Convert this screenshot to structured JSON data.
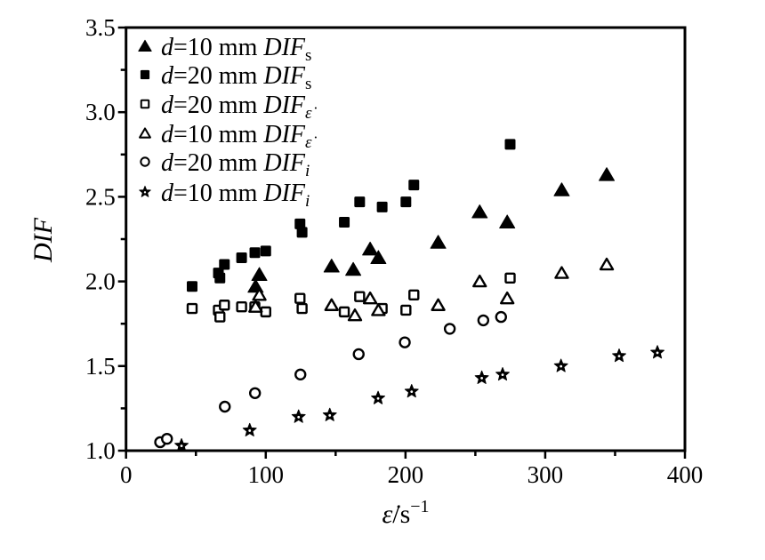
{
  "chart_data": {
    "type": "scatter",
    "title": "",
    "xlabel": "ε̇/s−1",
    "xlabel_parts": {
      "symbol": "ε̇",
      "unit": "/s",
      "exp": "−1"
    },
    "ylabel": "DIF",
    "xlim": [
      0,
      400
    ],
    "ylim": [
      1.0,
      3.5
    ],
    "x_ticks": [
      0,
      100,
      200,
      300,
      400
    ],
    "x_tick_labels": [
      "0",
      "100",
      "200",
      "300",
      "400"
    ],
    "y_ticks": [
      1.0,
      1.5,
      2.0,
      2.5,
      3.0,
      3.5
    ],
    "y_tick_labels": [
      "1.0",
      "1.5",
      "2.0",
      "2.5",
      "3.0",
      "3.5"
    ],
    "grid": false,
    "legend_position": "top-left",
    "series": [
      {
        "name": "d=10 mm DIFs",
        "label": {
          "d": "d",
          "eq": "=10 mm ",
          "dif": "DIF",
          "sub": "s"
        },
        "marker": "triangle-filled",
        "x": [
          92.7,
          95.4,
          147.1,
          162.6,
          174.7,
          180.6,
          223.4,
          253.1,
          272.8,
          311.8,
          344.0
        ],
        "y": [
          1.97,
          2.04,
          2.09,
          2.07,
          2.19,
          2.14,
          2.23,
          2.41,
          2.35,
          2.54,
          2.63
        ]
      },
      {
        "name": "d=20 mm DIFs",
        "label": {
          "d": "d",
          "eq": "=20 mm ",
          "dif": "DIF",
          "sub": "s"
        },
        "marker": "square-filled",
        "x": [
          47.3,
          66.1,
          67.2,
          70.4,
          82.7,
          92.2,
          100.0,
          124.5,
          126.0,
          156.2,
          167.2,
          183.3,
          200.3,
          206.0,
          274.9
        ],
        "y": [
          1.97,
          2.05,
          2.02,
          2.1,
          2.14,
          2.17,
          2.18,
          2.34,
          2.29,
          2.35,
          2.47,
          2.44,
          2.47,
          2.57,
          2.81
        ]
      },
      {
        "name": "d=20 mm DIFε̇",
        "label": {
          "d": "d",
          "eq": "=20 mm ",
          "dif": "DIF",
          "sub": "ε̇"
        },
        "marker": "square-open",
        "x": [
          47.3,
          66.1,
          67.2,
          70.4,
          82.7,
          92.2,
          100.0,
          124.5,
          126.0,
          156.2,
          167.2,
          183.3,
          200.3,
          206.0,
          274.9
        ],
        "y": [
          1.84,
          1.83,
          1.79,
          1.86,
          1.85,
          1.85,
          1.82,
          1.9,
          1.84,
          1.82,
          1.91,
          1.84,
          1.83,
          1.92,
          2.02
        ]
      },
      {
        "name": "d=10 mm DIFε̇",
        "label": {
          "d": "d",
          "eq": "=10 mm ",
          "dif": "DIF",
          "sub": "ε̇"
        },
        "marker": "triangle-open",
        "x": [
          95.4,
          92.7,
          147.1,
          163.8,
          174.7,
          180.6,
          223.4,
          253.1,
          272.8,
          311.8,
          344.0
        ],
        "y": [
          1.92,
          1.85,
          1.86,
          1.8,
          1.9,
          1.83,
          1.86,
          2.0,
          1.9,
          2.05,
          2.1
        ]
      },
      {
        "name": "d=20 mm DIFi",
        "label": {
          "d": "d",
          "eq": "=20 mm ",
          "dif": "DIF",
          "sub": "i"
        },
        "marker": "circle-open",
        "x": [
          24.4,
          29.3,
          70.7,
          92.3,
          124.8,
          166.5,
          199.5,
          231.7,
          255.7,
          268.4
        ],
        "y": [
          1.05,
          1.07,
          1.26,
          1.34,
          1.45,
          1.57,
          1.64,
          1.72,
          1.77,
          1.79
        ]
      },
      {
        "name": "d=10 mm DIFi",
        "label": {
          "d": "d",
          "eq": "=10 mm ",
          "dif": "DIF",
          "sub": "i"
        },
        "marker": "star",
        "x": [
          39.7,
          88.5,
          123.5,
          145.8,
          180.4,
          204.4,
          254.6,
          269.5,
          311.3,
          352.9,
          380.3
        ],
        "y": [
          1.03,
          1.12,
          1.2,
          1.21,
          1.31,
          1.35,
          1.43,
          1.45,
          1.5,
          1.56,
          1.58
        ]
      }
    ]
  }
}
